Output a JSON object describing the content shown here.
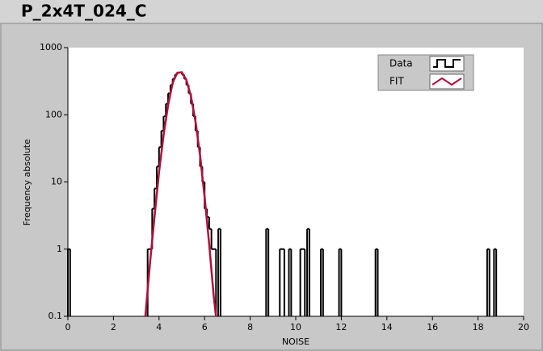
{
  "chart_data": {
    "type": "histogram",
    "title": "P_2x4T_024_C",
    "x_label": "NOISE",
    "y_label": "Frequency absolute",
    "xlim": [
      0,
      20
    ],
    "xticks": [
      0,
      2,
      4,
      6,
      8,
      10,
      12,
      14,
      16,
      18,
      20
    ],
    "ylim": [
      0.1,
      1000
    ],
    "yticks": [
      0.1,
      1,
      10,
      100,
      1000
    ],
    "y_scale": "log",
    "legend": "top-right",
    "series": [
      {
        "name": "Data",
        "color": "#000000",
        "style": "step",
        "x": [
          0.05,
          3.55,
          3.65,
          3.75,
          3.85,
          3.95,
          4.05,
          4.15,
          4.25,
          4.35,
          4.45,
          4.55,
          4.65,
          4.75,
          4.85,
          4.95,
          5.05,
          5.15,
          5.25,
          5.35,
          5.45,
          5.55,
          5.65,
          5.75,
          5.85,
          5.95,
          6.05,
          6.15,
          6.25,
          6.35,
          6.45,
          6.65,
          8.75,
          9.35,
          9.45,
          9.75,
          10.25,
          10.35,
          10.55,
          11.15,
          11.95,
          13.55,
          18.45,
          18.75
        ],
        "values": [
          1,
          1,
          1,
          4,
          8,
          17,
          33,
          58,
          95,
          146,
          209,
          278,
          344,
          397,
          426,
          430,
          397,
          344,
          278,
          209,
          146,
          95,
          58,
          33,
          17,
          10,
          4,
          3,
          2,
          1,
          1,
          2,
          2,
          1,
          1,
          1,
          1,
          1,
          2,
          1,
          1,
          1,
          1,
          1
        ]
      },
      {
        "name": "FIT",
        "color": "#b0103c",
        "style": "line",
        "x": [
          3.4,
          3.6,
          3.8,
          4.0,
          4.2,
          4.4,
          4.6,
          4.8,
          5.0,
          5.2,
          5.4,
          5.6,
          5.8,
          6.0,
          6.2,
          6.4,
          6.5
        ],
        "values": [
          0.1,
          0.6,
          3,
          14,
          50,
          140,
          300,
          420,
          430,
          330,
          190,
          80,
          25,
          6,
          1.2,
          0.2,
          0.1
        ]
      }
    ]
  }
}
